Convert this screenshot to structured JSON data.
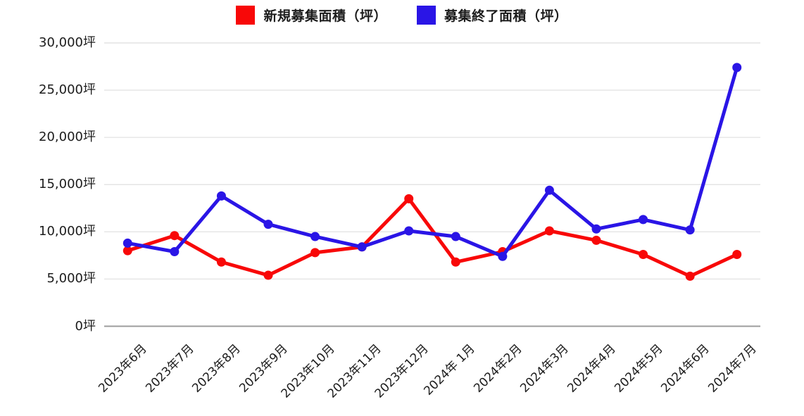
{
  "chart_data": {
    "type": "line",
    "title": "",
    "xlabel": "",
    "ylabel": "",
    "unit": "坪",
    "ylim": [
      0,
      30000
    ],
    "y_tick_values": [
      0,
      5000,
      10000,
      15000,
      20000,
      25000,
      30000
    ],
    "y_tick_labels": [
      "0坪",
      "5,000坪",
      "10,000坪",
      "15,000坪",
      "20,000坪",
      "25,000坪",
      "30,000坪"
    ],
    "grid": true,
    "legend_position": "top",
    "categories": [
      "2023年6月",
      "2023年7月",
      "2023年8月",
      "2023年9月",
      "2023年10月",
      "2023年11月",
      "2023年12月",
      "2024年 1月",
      "2024年2月",
      "2024年3月",
      "2024年4月",
      "2024年5月",
      "2024年6月",
      "2024年7月"
    ],
    "series": [
      {
        "name": "新規募集面積（坪）",
        "color": "#f80808",
        "values": [
          8000,
          9600,
          6800,
          5400,
          7800,
          8400,
          13500,
          6800,
          7900,
          10100,
          9100,
          7600,
          5300,
          7600
        ]
      },
      {
        "name": "募集終了面積（坪）",
        "color": "#2a15e6",
        "values": [
          8800,
          7900,
          13800,
          10800,
          9500,
          8400,
          10100,
          9500,
          7400,
          14400,
          10300,
          11300,
          10200,
          27400
        ]
      }
    ]
  },
  "legend": {
    "items": [
      {
        "label": "新規募集面積（坪）",
        "color": "#f80808"
      },
      {
        "label": "募集終了面積（坪）",
        "color": "#2a15e6"
      }
    ]
  },
  "colors": {
    "grid_line": "#e4e4e4",
    "zero_line": "#9c9c9c",
    "text": "#1c1c1c"
  }
}
